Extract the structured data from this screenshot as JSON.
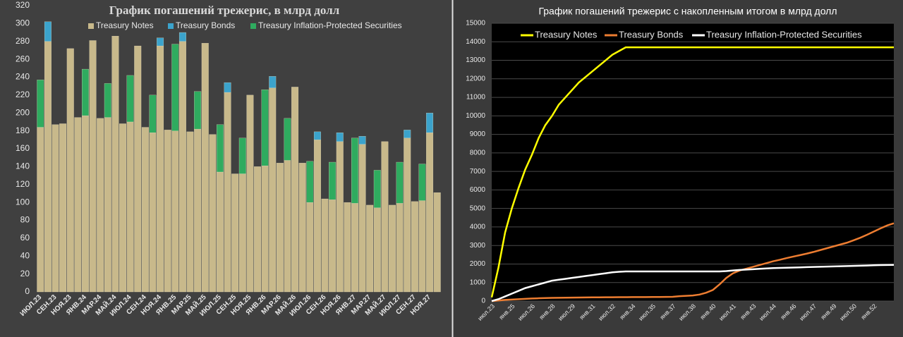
{
  "chart_data": [
    {
      "type": "bar",
      "stacked": true,
      "title": "График погашений трежерис, в млрд долл",
      "categories": [
        "ИЮЛ.23",
        null,
        "СЕН.23",
        null,
        "НОЯ.23",
        null,
        "ЯНВ.24",
        null,
        "МАР.24",
        null,
        "МАЙ.24",
        null,
        "ИЮЛ.24",
        null,
        "СЕН.24",
        null,
        "НОЯ.24",
        null,
        "ЯНВ.25",
        null,
        "МАР.25",
        null,
        "МАЙ.25",
        null,
        "ИЮЛ.25",
        null,
        "СЕН.25",
        null,
        "НОЯ.25",
        null,
        "ЯНВ.26",
        null,
        "МАР.26",
        null,
        "МАЙ.26",
        null,
        "ИЮЛ.26",
        null,
        "СЕН.26",
        null,
        "НОЯ.26",
        null,
        "ЯНВ.27",
        null,
        "МАР.27",
        null,
        "МАЙ.27",
        null,
        "ИЮЛ.27",
        null,
        "СЕН.27",
        null,
        "НОЯ.27",
        null
      ],
      "series": [
        {
          "name": "Treasury Notes",
          "color": "#c8b98b",
          "values": [
            184,
            280,
            187,
            188,
            272,
            195,
            197,
            281,
            194,
            195,
            286,
            188,
            190,
            275,
            184,
            178,
            275,
            181,
            180,
            280,
            179,
            182,
            278,
            176,
            134,
            223,
            132,
            132,
            220,
            140,
            141,
            228,
            144,
            147,
            229,
            144,
            100,
            170,
            104,
            103,
            168,
            100,
            99,
            165,
            97,
            94,
            168,
            97,
            99,
            172,
            101,
            102,
            178,
            111
          ]
        },
        {
          "name": "Treasury Bonds",
          "color": "#3ba3cc",
          "values": [
            0,
            22,
            0,
            0,
            0,
            0,
            0,
            0,
            0,
            0,
            0,
            0,
            0,
            0,
            0,
            0,
            9,
            0,
            0,
            10,
            0,
            0,
            0,
            0,
            0,
            11,
            0,
            0,
            0,
            0,
            0,
            13,
            0,
            0,
            0,
            0,
            0,
            9,
            0,
            0,
            10,
            0,
            0,
            9,
            0,
            0,
            0,
            0,
            0,
            9,
            0,
            0,
            22,
            0
          ]
        },
        {
          "name": "Treasury Inflation-Protected Securities",
          "color": "#2fab5f",
          "values": [
            53,
            0,
            0,
            0,
            0,
            0,
            52,
            0,
            0,
            38,
            0,
            0,
            52,
            0,
            0,
            42,
            0,
            0,
            97,
            0,
            0,
            42,
            0,
            0,
            53,
            0,
            0,
            40,
            0,
            0,
            85,
            0,
            0,
            47,
            0,
            0,
            46,
            0,
            0,
            42,
            0,
            0,
            73,
            0,
            0,
            42,
            0,
            0,
            46,
            0,
            0,
            41,
            0,
            0
          ]
        }
      ],
      "ylim": [
        0,
        320
      ],
      "yticks": [
        0,
        20,
        40,
        60,
        80,
        100,
        120,
        140,
        160,
        180,
        200,
        220,
        240,
        260,
        280,
        300,
        320
      ],
      "grid": false
    },
    {
      "type": "line",
      "title": "График погашений трежерис с накопленным итогом в млрд долл",
      "categories": [
        "июл.23",
        null,
        null,
        "янв.25",
        null,
        null,
        "июл.26",
        null,
        null,
        "янв.28",
        null,
        null,
        "июл.29",
        null,
        null,
        "янв.31",
        null,
        null,
        "июл.32",
        null,
        null,
        "янв.34",
        null,
        null,
        "июл.35",
        null,
        null,
        "янв.37",
        null,
        null,
        "июл.38",
        null,
        null,
        "янв.40",
        null,
        null,
        "июл.41",
        null,
        null,
        "янв.43",
        null,
        null,
        "июл.44",
        null,
        null,
        "янв.46",
        null,
        null,
        "июл.47",
        null,
        null,
        "янв.49",
        null,
        null,
        "июл.50",
        null,
        null,
        "янв.52",
        null,
        null,
        null
      ],
      "series": [
        {
          "name": "Treasury Notes",
          "color": "#ffff00",
          "values": [
            200,
            1800,
            3700,
            5000,
            6100,
            7100,
            7900,
            8800,
            9500,
            10000,
            10600,
            11000,
            11400,
            11800,
            12100,
            12400,
            12700,
            13000,
            13300,
            13500,
            13700,
            13700,
            13700,
            13700,
            13700,
            13700,
            13700,
            13700,
            13700,
            13700,
            13700,
            13700,
            13700,
            13700,
            13700,
            13700,
            13700,
            13700,
            13700,
            13700,
            13700,
            13700,
            13700,
            13700,
            13700,
            13700,
            13700,
            13700,
            13700,
            13700,
            13700,
            13700,
            13700,
            13700,
            13700,
            13700,
            13700,
            13700,
            13700,
            13700,
            13700
          ]
        },
        {
          "name": "Treasury Bonds",
          "color": "#ed7d31",
          "values": [
            0,
            30,
            60,
            80,
            100,
            120,
            140,
            150,
            160,
            170,
            175,
            180,
            185,
            190,
            195,
            200,
            202,
            204,
            206,
            208,
            210,
            212,
            214,
            216,
            218,
            220,
            225,
            230,
            260,
            280,
            300,
            350,
            450,
            600,
            900,
            1250,
            1500,
            1650,
            1750,
            1850,
            1950,
            2050,
            2150,
            2230,
            2320,
            2400,
            2480,
            2560,
            2650,
            2750,
            2850,
            2950,
            3050,
            3150,
            3280,
            3420,
            3580,
            3750,
            3920,
            4080,
            4200
          ]
        },
        {
          "name": "Treasury Inflation-Protected Securities",
          "color": "#ffffff",
          "values": [
            0,
            100,
            250,
            400,
            550,
            700,
            800,
            900,
            1000,
            1100,
            1150,
            1200,
            1250,
            1300,
            1350,
            1400,
            1450,
            1500,
            1550,
            1580,
            1600,
            1600,
            1600,
            1600,
            1600,
            1600,
            1600,
            1600,
            1600,
            1600,
            1600,
            1600,
            1600,
            1600,
            1600,
            1620,
            1650,
            1680,
            1700,
            1720,
            1740,
            1760,
            1780,
            1790,
            1800,
            1810,
            1820,
            1830,
            1840,
            1850,
            1860,
            1870,
            1880,
            1890,
            1900,
            1910,
            1920,
            1930,
            1940,
            1945,
            1950
          ]
        }
      ],
      "ylim": [
        0,
        15000
      ],
      "yticks": [
        0,
        1000,
        2000,
        3000,
        4000,
        5000,
        6000,
        7000,
        8000,
        9000,
        10000,
        11000,
        12000,
        13000,
        14000,
        15000
      ],
      "grid": true
    }
  ]
}
